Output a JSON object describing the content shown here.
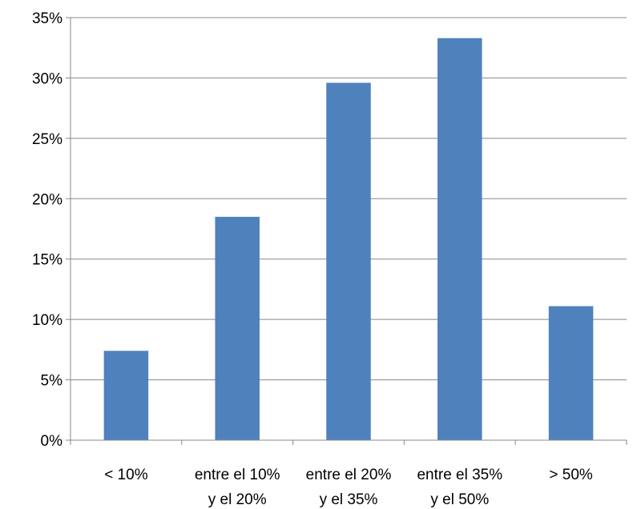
{
  "chart_data": {
    "type": "bar",
    "categories": [
      [
        "< 10%"
      ],
      [
        "entre el 10%",
        "y el 20%"
      ],
      [
        "entre el 20%",
        "y el 35%"
      ],
      [
        "entre el 35%",
        "y el 50%"
      ],
      [
        "> 50%"
      ]
    ],
    "values": [
      7.4,
      18.5,
      29.6,
      33.3,
      11.1
    ],
    "ylim": [
      0,
      35
    ],
    "yticks": [
      0,
      5,
      10,
      15,
      20,
      25,
      30,
      35
    ],
    "ytick_format": "{v}%",
    "grid": true,
    "legend": "none",
    "title": "",
    "xlabel": "",
    "ylabel": "",
    "colors": {
      "bar": "#4F81BD",
      "grid": "#888888",
      "axis": "#888888"
    }
  }
}
